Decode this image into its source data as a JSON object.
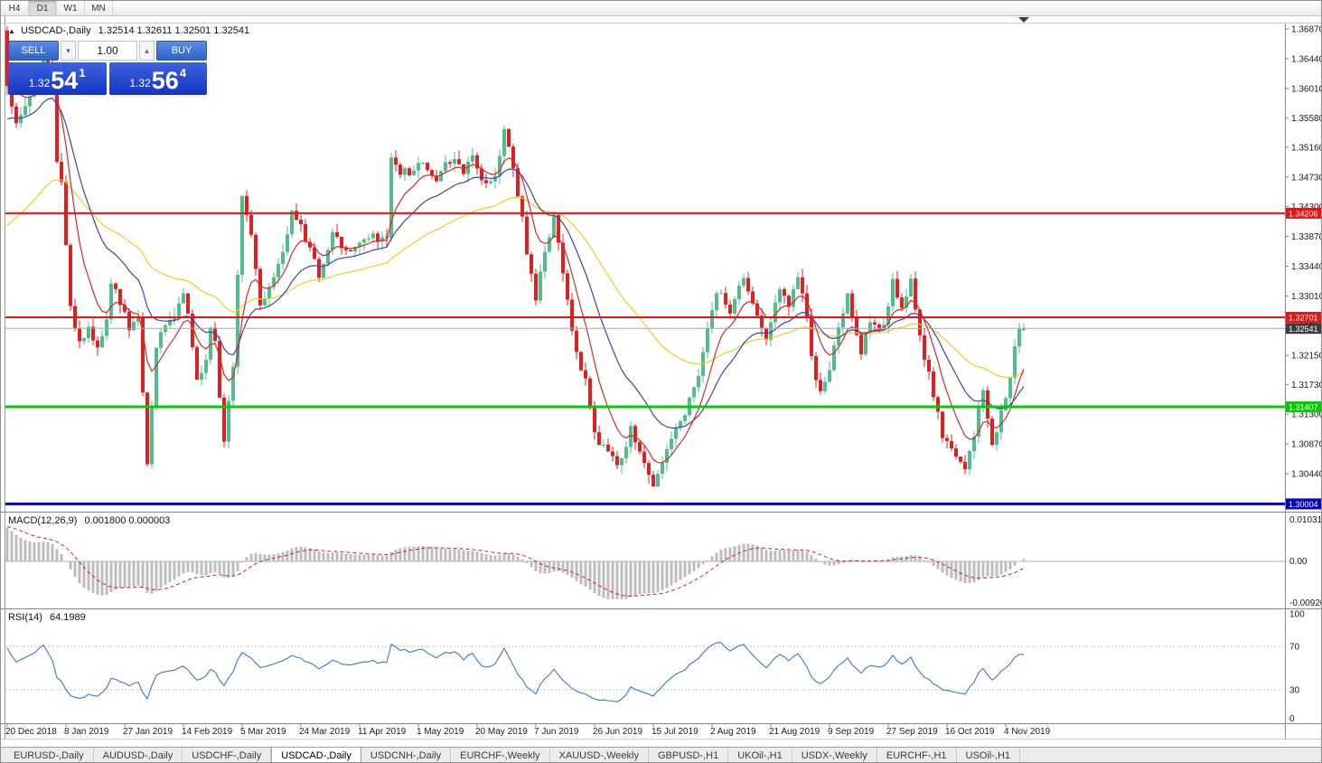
{
  "icons": {
    "title_marker": "▲",
    "spin_up": "▴",
    "spin_down": "▾"
  },
  "toolbar": {
    "timeframes": [
      {
        "label": "H4",
        "active": false
      },
      {
        "label": "D1",
        "active": true
      },
      {
        "label": "W1",
        "active": false
      },
      {
        "label": "MN",
        "active": false
      }
    ]
  },
  "chart": {
    "title": "USDCAD-,Daily",
    "ohlc_display": "1.32514 1.32611 1.32501 1.32541",
    "trade_panel": {
      "sell_label": "SELL",
      "buy_label": "BUY",
      "volume": "1.00",
      "sell_price_small": "1.32",
      "sell_price_big": "54",
      "sell_price_sup": "1",
      "buy_price_small": "1.32",
      "buy_price_big": "56",
      "buy_price_sup": "4"
    }
  },
  "chart_data": {
    "type": "candlestick",
    "symbol": "USDCAD-",
    "timeframe": "Daily",
    "ohlc_last": {
      "open": 1.32514,
      "high": 1.32611,
      "low": 1.32501,
      "close": 1.32541
    },
    "current_price": 1.32541,
    "current_price_label": "1.32541",
    "price_axis_ticks": [
      1.3687,
      1.3644,
      1.3601,
      1.3558,
      1.3516,
      1.3473,
      1.343,
      1.3387,
      1.3344,
      1.3301,
      1.3258,
      1.3215,
      1.3173,
      1.313,
      1.3087,
      1.3044
    ],
    "levels": [
      {
        "price": 1.34206,
        "label": "1.34206",
        "color": "#ee1111",
        "width": 2
      },
      {
        "price": 1.32701,
        "label": "1.32701",
        "color": "#ee1111",
        "width": 2
      },
      {
        "price": 1.31407,
        "label": "1.31407",
        "color": "#00cc00",
        "width": 3
      },
      {
        "price": 1.30004,
        "label": "1.30004",
        "color": "#0000c8",
        "width": 3
      }
    ],
    "colors": {
      "up": "#4fbd8c",
      "down": "#e02020"
    },
    "bars_per_tick": 13,
    "date_ticks": [
      "20 Dec 2018",
      "8 Jan 2019",
      "27 Jan 2019",
      "14 Feb 2019",
      "5 Mar 2019",
      "24 Mar 2019",
      "11 Apr 2019",
      "1 May 2019",
      "20 May 2019",
      "7 Jun 2019",
      "26 Jun 2019",
      "15 Jul 2019",
      "2 Aug 2019",
      "21 Aug 2019",
      "9 Sep 2019",
      "27 Sep 2019",
      "16 Oct 2019",
      "4 Nov 2019"
    ],
    "moving_averages": [
      {
        "period": 50,
        "color": "#f0cd20"
      },
      {
        "period": 20,
        "color": "#4040b0"
      },
      {
        "period": 8,
        "color": "#d42a2a"
      }
    ],
    "pre_window_path": [
      [
        -70,
        1.292
      ],
      [
        -50,
        1.308
      ],
      [
        -30,
        1.33
      ],
      [
        -12,
        1.352
      ],
      [
        -4,
        1.364
      ],
      [
        -1,
        1.3685
      ]
    ],
    "price_path": [
      [
        0,
        1.361
      ],
      [
        1,
        1.3575
      ],
      [
        2,
        1.3555
      ],
      [
        4,
        1.357
      ],
      [
        6,
        1.36
      ],
      [
        8,
        1.3655
      ],
      [
        10,
        1.36
      ],
      [
        11,
        1.35
      ],
      [
        12,
        1.347
      ],
      [
        14,
        1.329
      ],
      [
        16,
        1.323
      ],
      [
        18,
        1.3255
      ],
      [
        20,
        1.3225
      ],
      [
        22,
        1.327
      ],
      [
        23,
        1.332
      ],
      [
        25,
        1.329
      ],
      [
        27,
        1.3255
      ],
      [
        29,
        1.327
      ],
      [
        31,
        1.306
      ],
      [
        33,
        1.323
      ],
      [
        35,
        1.326
      ],
      [
        37,
        1.3275
      ],
      [
        39,
        1.331
      ],
      [
        41,
        1.323
      ],
      [
        42,
        1.318
      ],
      [
        44,
        1.321
      ],
      [
        45,
        1.325
      ],
      [
        46,
        1.323
      ],
      [
        48,
        1.309
      ],
      [
        50,
        1.32
      ],
      [
        51,
        1.333
      ],
      [
        52,
        1.344
      ],
      [
        54,
        1.339
      ],
      [
        56,
        1.329
      ],
      [
        58,
        1.331
      ],
      [
        59,
        1.333
      ],
      [
        61,
        1.337
      ],
      [
        63,
        1.342
      ],
      [
        65,
        1.34
      ],
      [
        67,
        1.337
      ],
      [
        69,
        1.333
      ],
      [
        71,
        1.337
      ],
      [
        72,
        1.339
      ],
      [
        74,
        1.337
      ],
      [
        76,
        1.336
      ],
      [
        78,
        1.338
      ],
      [
        80,
        1.339
      ],
      [
        82,
        1.338
      ],
      [
        84,
        1.338
      ],
      [
        85,
        1.35
      ],
      [
        87,
        1.348
      ],
      [
        89,
        1.348
      ],
      [
        91,
        1.349
      ],
      [
        93,
        1.3485
      ],
      [
        95,
        1.347
      ],
      [
        97,
        1.349
      ],
      [
        99,
        1.35
      ],
      [
        101,
        1.348
      ],
      [
        103,
        1.35
      ],
      [
        105,
        1.347
      ],
      [
        106,
        1.346
      ],
      [
        108,
        1.348
      ],
      [
        109,
        1.35
      ],
      [
        110,
        1.354
      ],
      [
        111,
        1.352
      ],
      [
        112,
        1.348
      ],
      [
        114,
        1.342
      ],
      [
        115,
        1.336
      ],
      [
        117,
        1.33
      ],
      [
        119,
        1.336
      ],
      [
        121,
        1.342
      ],
      [
        123,
        1.333
      ],
      [
        125,
        1.325
      ],
      [
        127,
        1.32
      ],
      [
        128,
        1.318
      ],
      [
        130,
        1.31
      ],
      [
        132,
        1.308
      ],
      [
        134,
        1.307
      ],
      [
        135,
        1.305
      ],
      [
        137,
        1.308
      ],
      [
        138,
        1.311
      ],
      [
        140,
        1.308
      ],
      [
        141,
        1.306
      ],
      [
        143,
        1.303
      ],
      [
        145,
        1.306
      ],
      [
        147,
        1.309
      ],
      [
        149,
        1.312
      ],
      [
        151,
        1.315
      ],
      [
        153,
        1.319
      ],
      [
        154,
        1.322
      ],
      [
        156,
        1.328
      ],
      [
        157,
        1.331
      ],
      [
        159,
        1.329
      ],
      [
        160,
        1.327
      ],
      [
        162,
        1.331
      ],
      [
        163,
        1.333
      ],
      [
        165,
        1.329
      ],
      [
        167,
        1.326
      ],
      [
        168,
        1.324
      ],
      [
        170,
        1.329
      ],
      [
        171,
        1.331
      ],
      [
        173,
        1.329
      ],
      [
        175,
        1.333
      ],
      [
        177,
        1.327
      ],
      [
        178,
        1.321
      ],
      [
        180,
        1.316
      ],
      [
        182,
        1.32
      ],
      [
        183,
        1.323
      ],
      [
        185,
        1.327
      ],
      [
        186,
        1.33
      ],
      [
        188,
        1.325
      ],
      [
        189,
        1.322
      ],
      [
        191,
        1.326
      ],
      [
        193,
        1.325
      ],
      [
        195,
        1.328
      ],
      [
        196,
        1.332
      ],
      [
        198,
        1.328
      ],
      [
        200,
        1.332
      ],
      [
        202,
        1.324
      ],
      [
        204,
        1.319
      ],
      [
        205,
        1.316
      ],
      [
        207,
        1.31
      ],
      [
        209,
        1.308
      ],
      [
        210,
        1.307
      ],
      [
        212,
        1.305
      ],
      [
        214,
        1.31
      ],
      [
        216,
        1.317
      ],
      [
        218,
        1.309
      ],
      [
        220,
        1.313
      ],
      [
        222,
        1.318
      ],
      [
        223,
        1.323
      ],
      [
        224,
        1.325
      ],
      [
        225,
        1.32541
      ]
    ],
    "macd": {
      "label": "MACD(12,26,9)",
      "values": "0.001800 0.000003",
      "fast": 12,
      "slow": 26,
      "signal": 9,
      "range": [
        -0.009203,
        0.010311
      ],
      "axis": {
        "top": "0.010311",
        "mid": "0.00",
        "bottom": "-0.009203"
      }
    },
    "rsi": {
      "label": "RSI(14)",
      "value": "64.1989",
      "period": 14,
      "levels": [
        70,
        30
      ],
      "axis": [
        100,
        70,
        30,
        0
      ]
    }
  },
  "tabs": [
    {
      "label": "EURUSD-,Daily",
      "active": false
    },
    {
      "label": "AUDUSD-,Daily",
      "active": false
    },
    {
      "label": "USDCHF-,Daily",
      "active": false
    },
    {
      "label": "USDCAD-,Daily",
      "active": true
    },
    {
      "label": "USDCNH-,Daily",
      "active": false
    },
    {
      "label": "EURCHF-,Weekly",
      "active": false
    },
    {
      "label": "XAUUSD-,Weekly",
      "active": false
    },
    {
      "label": "GBPUSD-,H1",
      "active": false
    },
    {
      "label": "UKOil-,H1",
      "active": false
    },
    {
      "label": "USDX-,Weekly",
      "active": false
    },
    {
      "label": "EURCHF-,H1",
      "active": false
    },
    {
      "label": "USOil-,H1",
      "active": false
    }
  ]
}
